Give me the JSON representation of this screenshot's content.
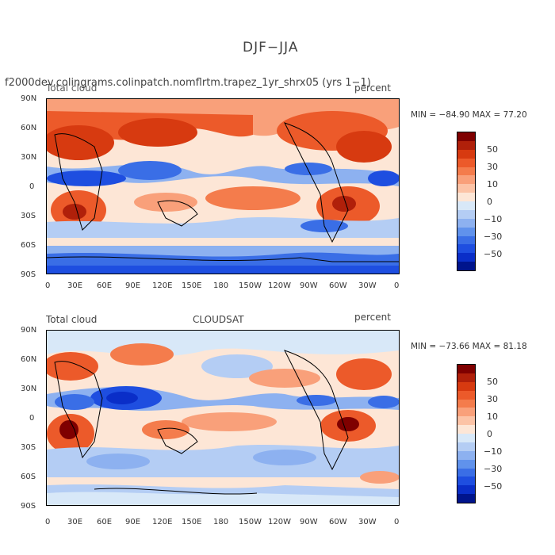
{
  "figure": {
    "title": "DJF−JJA"
  },
  "panel1": {
    "left_title": "f2000dev.colingrams.colinpatch.nomflrtm.trapez_1yr_shrx05 (yrs 1−1)",
    "left_sub": "Total cloud",
    "right_title": "percent",
    "minmax": "MIN = −84.90 MAX =  77.20"
  },
  "panel2": {
    "left_title": "Total cloud",
    "center_title": "CLOUDSAT",
    "right_title": "percent",
    "minmax": "MIN = −73.66 MAX =  81.18"
  },
  "axes": {
    "lat_ticks": [
      "90N",
      "60N",
      "30N",
      "0",
      "30S",
      "60S",
      "90S"
    ],
    "lon_ticks": [
      "0",
      "30E",
      "60E",
      "90E",
      "120E",
      "150E",
      "180",
      "150W",
      "120W",
      "90W",
      "60W",
      "30W",
      "0"
    ]
  },
  "colorbar": {
    "labels": [
      "50",
      "30",
      "10",
      "0",
      "−10",
      "−30",
      "−50"
    ],
    "colors": [
      "#7f0000",
      "#b0200a",
      "#d73a10",
      "#ec5a2a",
      "#f47c4c",
      "#f9a07a",
      "#fcc3a6",
      "#fde6d6",
      "#d8e8f8",
      "#b4cdf4",
      "#8db1f0",
      "#6092ec",
      "#3a6ee6",
      "#1e4ee0",
      "#0a2ec8",
      "#00148c"
    ]
  }
}
